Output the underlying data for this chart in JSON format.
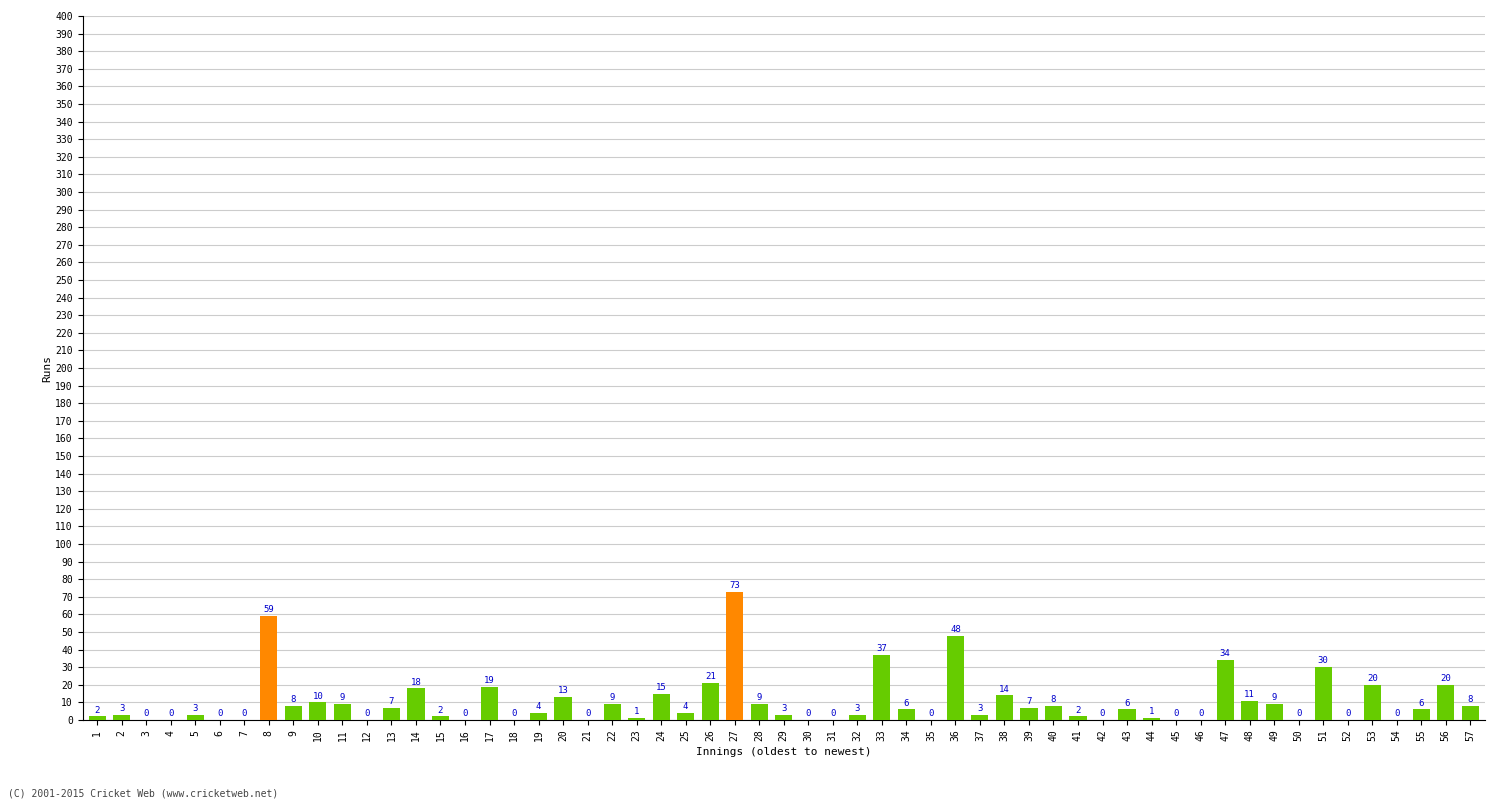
{
  "innings": [
    1,
    2,
    3,
    4,
    5,
    6,
    7,
    8,
    9,
    10,
    11,
    12,
    13,
    14,
    15,
    16,
    17,
    18,
    19,
    20,
    21,
    22,
    23,
    24,
    25,
    26,
    27,
    28,
    29,
    30,
    31,
    32,
    33,
    34,
    35,
    36,
    37,
    38,
    39,
    40,
    41,
    42,
    43,
    44,
    45,
    46,
    47,
    48,
    49,
    50,
    51,
    52,
    53,
    54,
    55,
    56,
    57
  ],
  "runs": [
    2,
    3,
    0,
    0,
    3,
    0,
    0,
    59,
    8,
    10,
    9,
    0,
    7,
    18,
    2,
    0,
    19,
    0,
    4,
    13,
    0,
    9,
    1,
    15,
    4,
    21,
    73,
    9,
    3,
    0,
    0,
    3,
    37,
    6,
    0,
    48,
    3,
    14,
    7,
    8,
    2,
    0,
    6,
    1,
    0,
    0,
    34,
    11,
    9,
    0,
    30,
    0,
    20,
    0,
    6,
    20,
    8
  ],
  "colors": [
    "#66cc00",
    "#66cc00",
    "#66cc00",
    "#66cc00",
    "#66cc00",
    "#66cc00",
    "#66cc00",
    "#ff8800",
    "#66cc00",
    "#66cc00",
    "#66cc00",
    "#66cc00",
    "#66cc00",
    "#66cc00",
    "#66cc00",
    "#66cc00",
    "#66cc00",
    "#66cc00",
    "#66cc00",
    "#66cc00",
    "#66cc00",
    "#66cc00",
    "#66cc00",
    "#66cc00",
    "#66cc00",
    "#66cc00",
    "#ff8800",
    "#66cc00",
    "#66cc00",
    "#66cc00",
    "#66cc00",
    "#66cc00",
    "#66cc00",
    "#66cc00",
    "#66cc00",
    "#66cc00",
    "#66cc00",
    "#66cc00",
    "#66cc00",
    "#66cc00",
    "#66cc00",
    "#66cc00",
    "#66cc00",
    "#66cc00",
    "#66cc00",
    "#66cc00",
    "#66cc00",
    "#66cc00",
    "#66cc00",
    "#66cc00",
    "#66cc00",
    "#66cc00",
    "#66cc00",
    "#66cc00",
    "#66cc00",
    "#66cc00",
    "#66cc00"
  ],
  "xlabel": "Innings (oldest to newest)",
  "ylabel": "Runs",
  "ylim": [
    0,
    400
  ],
  "yticks": [
    0,
    10,
    20,
    30,
    40,
    50,
    60,
    70,
    80,
    90,
    100,
    110,
    120,
    130,
    140,
    150,
    160,
    170,
    180,
    190,
    200,
    210,
    220,
    230,
    240,
    250,
    260,
    270,
    280,
    290,
    300,
    310,
    320,
    330,
    340,
    350,
    360,
    370,
    380,
    390,
    400
  ],
  "background_color": "#ffffff",
  "grid_color": "#cccccc",
  "bar_label_color": "#0000cc",
  "bar_label_fontsize": 6.5,
  "axis_label_fontsize": 8,
  "tick_fontsize": 7,
  "copyright": "(C) 2001-2015 Cricket Web (www.cricketweb.net)"
}
